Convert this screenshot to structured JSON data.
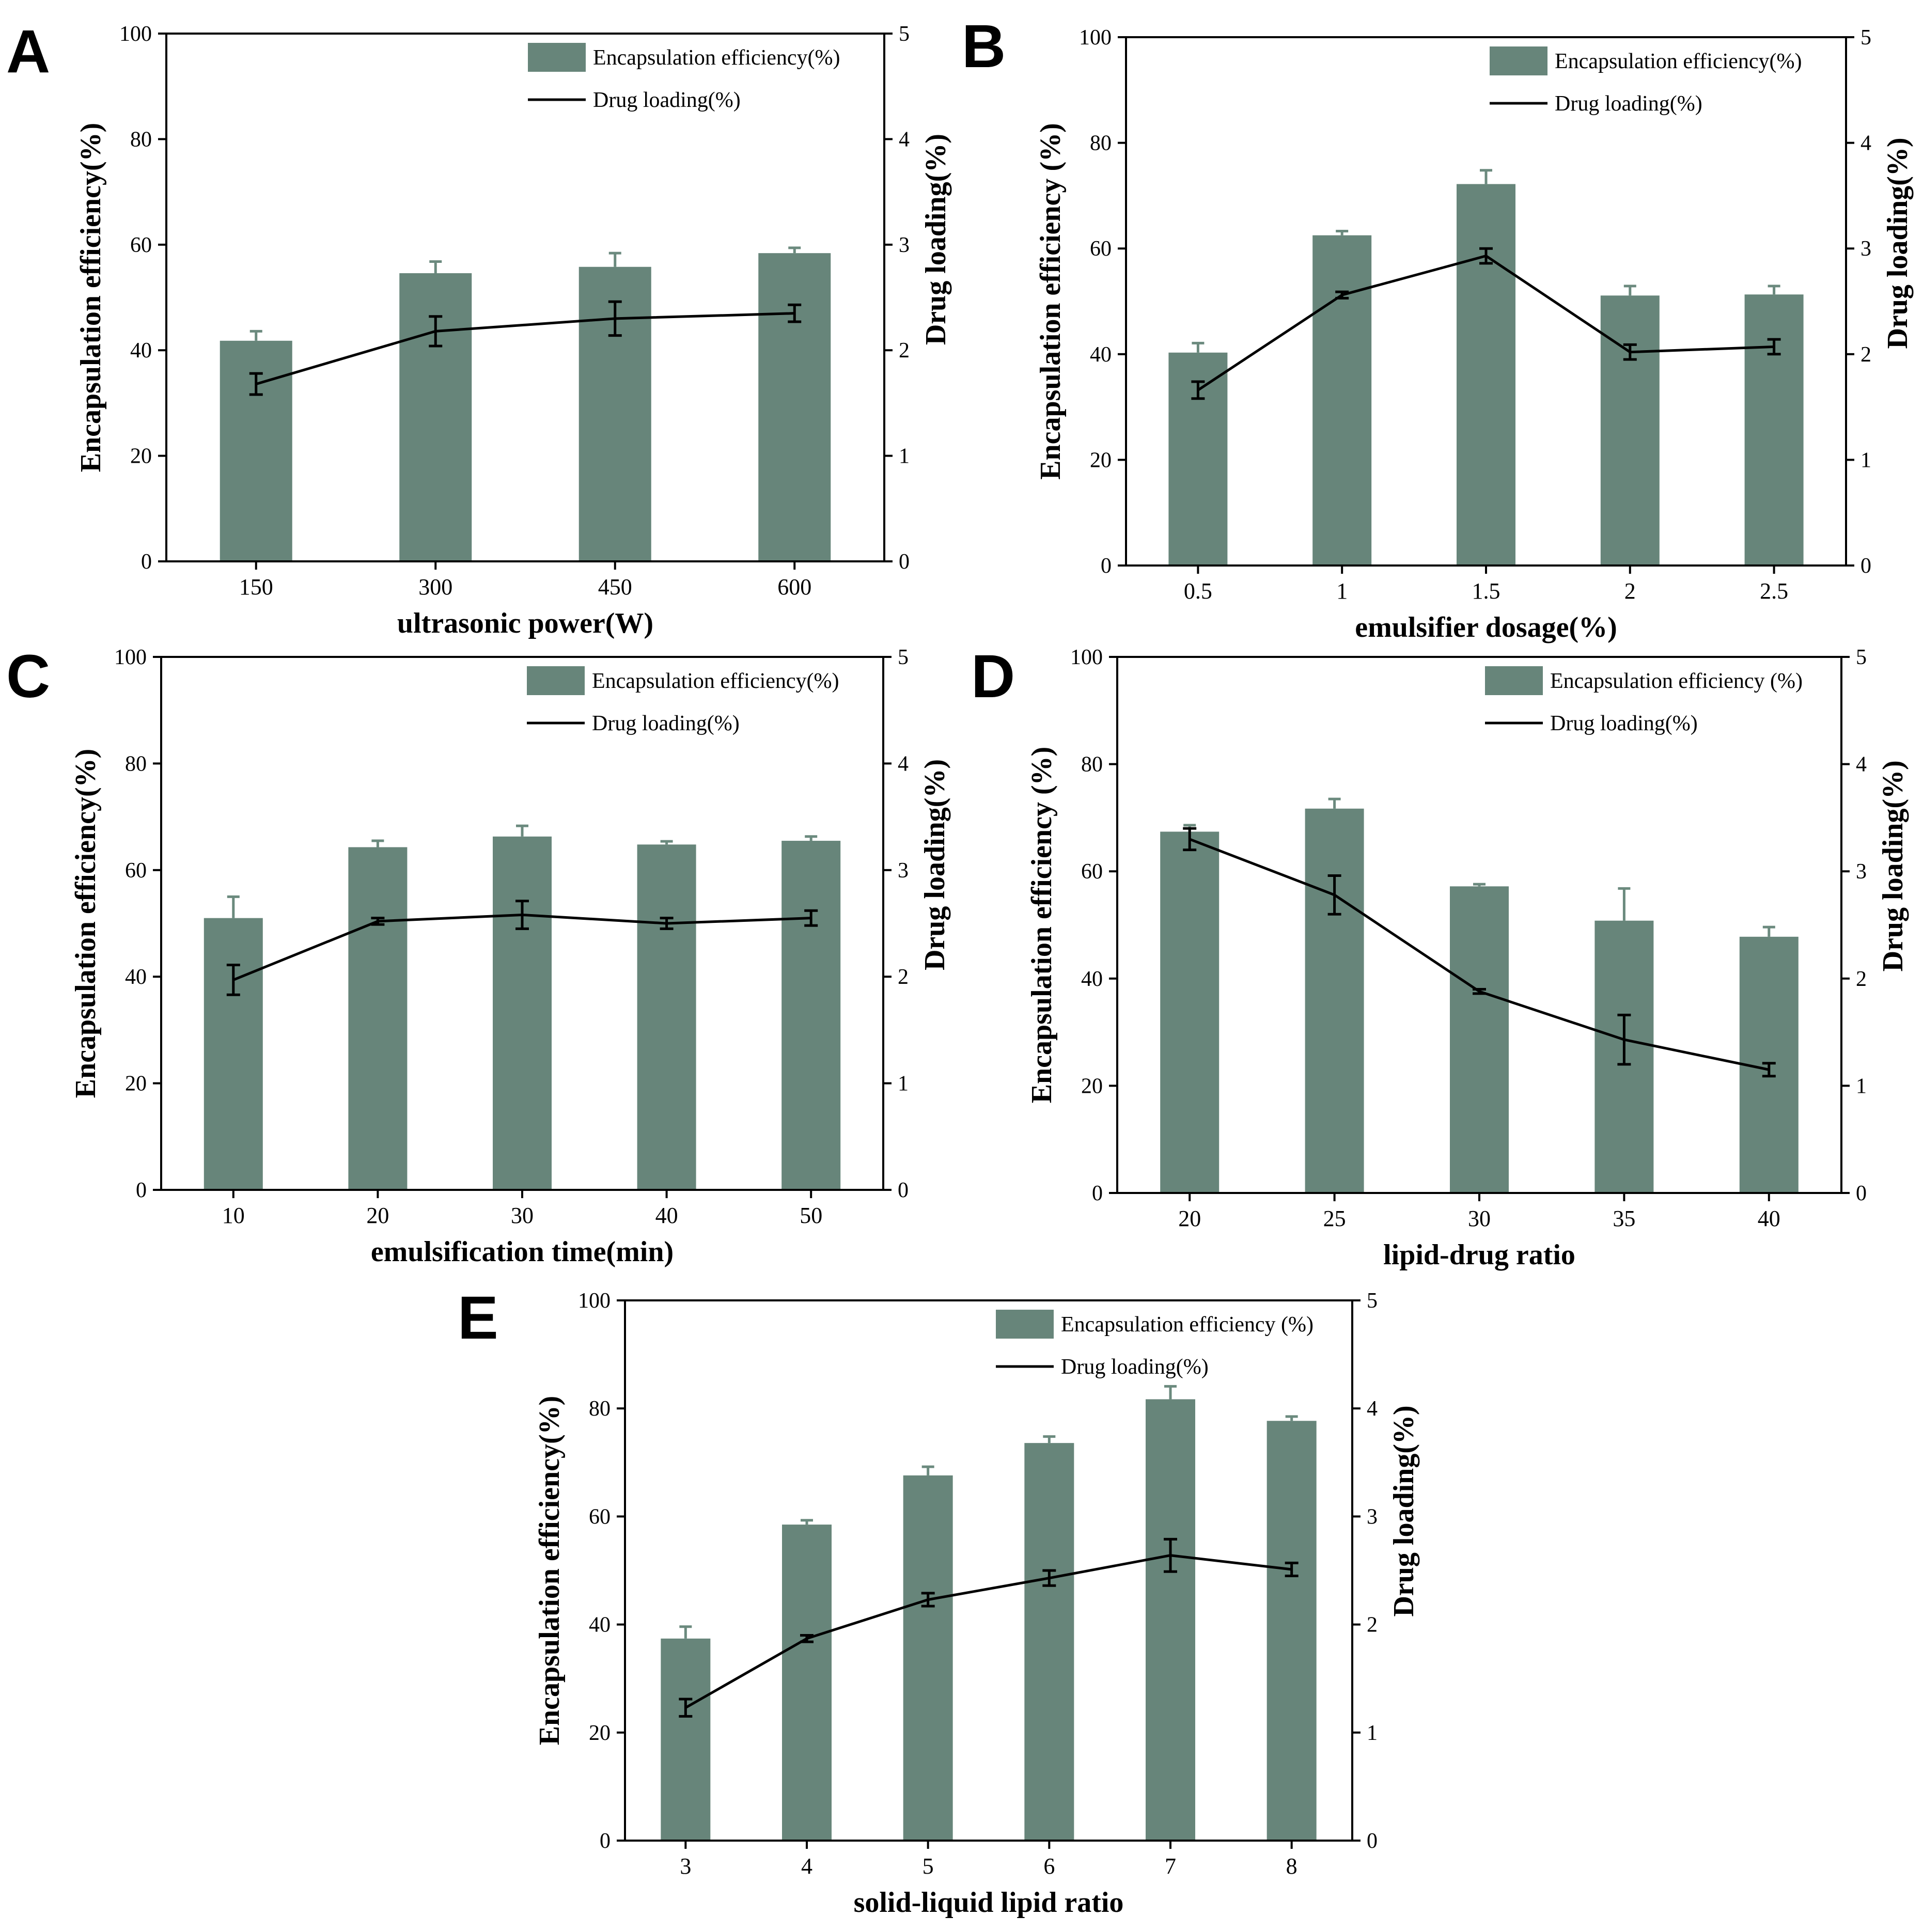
{
  "colors": {
    "bar": "#67857a",
    "bar_error": "#6b8a7e",
    "line": "#000000",
    "axis": "#000000"
  },
  "chart_data": [
    {
      "panel": "A",
      "type": "bar",
      "categories": [
        "150",
        "300",
        "450",
        "600"
      ],
      "series": [
        {
          "name": "Encapsulation efficiency(%)",
          "kind": "bar",
          "axis": "left",
          "values": [
            41.8,
            54.6,
            55.8,
            58.4
          ],
          "errors": [
            1.8,
            2.2,
            2.6,
            1.0
          ]
        },
        {
          "name": "Drug loading(%)",
          "kind": "line",
          "axis": "right",
          "values": [
            1.68,
            2.18,
            2.3,
            2.35
          ],
          "errors": [
            0.1,
            0.14,
            0.16,
            0.08
          ]
        }
      ],
      "xlabel": "ultrasonic power(W)",
      "ylabel": "Encapsulation efficiency(%)",
      "y2label": "Drug loading(%)",
      "ylim": [
        0,
        100
      ],
      "y2lim": [
        0,
        5
      ],
      "yticks": [
        "0",
        "20",
        "40",
        "60",
        "80",
        "100"
      ],
      "y2ticks": [
        "0",
        "1",
        "2",
        "3",
        "4",
        "5"
      ],
      "legend": "top-right"
    },
    {
      "panel": "B",
      "type": "bar",
      "categories": [
        "0.5",
        "1",
        "1.5",
        "2",
        "2.5"
      ],
      "series": [
        {
          "name": "Encapsulation efficiency(%)",
          "kind": "bar",
          "axis": "left",
          "values": [
            40.3,
            62.5,
            72.2,
            51.1,
            51.3
          ],
          "errors": [
            1.8,
            0.8,
            2.6,
            1.8,
            1.6
          ]
        },
        {
          "name": "Drug loading(%)",
          "kind": "line",
          "axis": "right",
          "values": [
            1.66,
            2.56,
            2.93,
            2.02,
            2.07
          ],
          "errors": [
            0.08,
            0.03,
            0.07,
            0.07,
            0.07
          ]
        }
      ],
      "xlabel": "emulsifier dosage(%)",
      "ylabel": "Encapsulation efficiency (%)",
      "y2label": "Drug loading(%)",
      "ylim": [
        0,
        100
      ],
      "y2lim": [
        0,
        5
      ],
      "yticks": [
        "0",
        "20",
        "40",
        "60",
        "80",
        "100"
      ],
      "y2ticks": [
        "0",
        "1",
        "2",
        "3",
        "4",
        "5"
      ],
      "legend": "top-right"
    },
    {
      "panel": "C",
      "type": "bar",
      "categories": [
        "10",
        "20",
        "30",
        "40",
        "50"
      ],
      "series": [
        {
          "name": "Encapsulation efficiency(%)",
          "kind": "bar",
          "axis": "left",
          "values": [
            51.0,
            64.3,
            66.3,
            64.8,
            65.5
          ],
          "errors": [
            4.0,
            1.2,
            2.0,
            0.6,
            0.8
          ]
        },
        {
          "name": "Drug loading(%)",
          "kind": "line",
          "axis": "right",
          "values": [
            1.97,
            2.52,
            2.58,
            2.5,
            2.55
          ],
          "errors": [
            0.14,
            0.03,
            0.13,
            0.05,
            0.07
          ]
        }
      ],
      "xlabel": "emulsification time(min)",
      "ylabel": "Encapsulation efficiency(%)",
      "y2label": "Drug loading(%)",
      "ylim": [
        0,
        100
      ],
      "y2lim": [
        0,
        5
      ],
      "yticks": [
        "0",
        "20",
        "40",
        "60",
        "80",
        "100"
      ],
      "y2ticks": [
        "0",
        "1",
        "2",
        "3",
        "4",
        "5"
      ],
      "legend": "top-right"
    },
    {
      "panel": "D",
      "type": "bar",
      "categories": [
        "20",
        "25",
        "30",
        "35",
        "40"
      ],
      "series": [
        {
          "name": "Encapsulation efficiency (%)",
          "kind": "bar",
          "axis": "left",
          "values": [
            67.4,
            71.7,
            57.2,
            50.8,
            47.8
          ],
          "errors": [
            1.2,
            1.8,
            0.4,
            6.0,
            1.8
          ]
        },
        {
          "name": "Drug loading(%)",
          "kind": "line",
          "axis": "right",
          "values": [
            3.3,
            2.78,
            1.88,
            1.43,
            1.15
          ],
          "errors": [
            0.1,
            0.18,
            0.02,
            0.23,
            0.06
          ]
        }
      ],
      "xlabel": "lipid-drug ratio",
      "ylabel": "Encapsulation efficiency (%)",
      "y2label": "Drug loading(%)",
      "ylim": [
        0,
        100
      ],
      "y2lim": [
        0,
        5
      ],
      "yticks": [
        "0",
        "20",
        "40",
        "60",
        "80",
        "100"
      ],
      "y2ticks": [
        "0",
        "1",
        "2",
        "3",
        "4",
        "5"
      ],
      "legend": "top-right"
    },
    {
      "panel": "E",
      "type": "bar",
      "categories": [
        "3",
        "4",
        "5",
        "6",
        "7",
        "8"
      ],
      "series": [
        {
          "name": "Encapsulation efficiency (%)",
          "kind": "bar",
          "axis": "left",
          "values": [
            37.4,
            58.5,
            67.6,
            73.6,
            81.7,
            77.7
          ],
          "errors": [
            2.2,
            0.8,
            1.6,
            1.2,
            2.4,
            0.8
          ]
        },
        {
          "name": "Drug loading(%)",
          "kind": "line",
          "axis": "right",
          "values": [
            1.23,
            1.87,
            2.23,
            2.43,
            2.64,
            2.51
          ],
          "errors": [
            0.08,
            0.03,
            0.06,
            0.07,
            0.15,
            0.06
          ]
        }
      ],
      "xlabel": "solid-liquid lipid ratio",
      "ylabel": "Encapsulation efficiency(%)",
      "y2label": "Drug loading(%)",
      "ylim": [
        0,
        100
      ],
      "y2lim": [
        0,
        5
      ],
      "yticks": [
        "0",
        "20",
        "40",
        "60",
        "80",
        "100"
      ],
      "y2ticks": [
        "0",
        "1",
        "2",
        "3",
        "4",
        "5"
      ],
      "legend": "top-right"
    }
  ]
}
